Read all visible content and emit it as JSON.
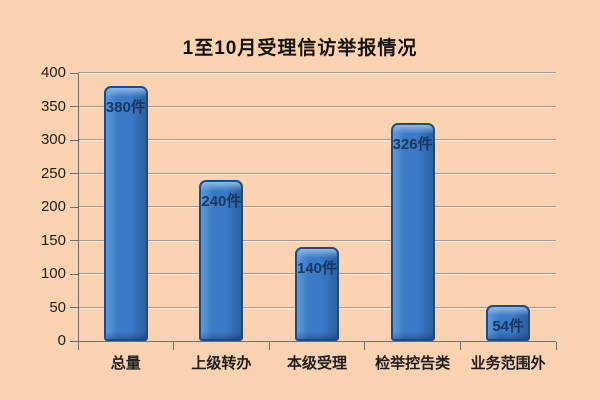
{
  "page": {
    "background": "#fcd3b0"
  },
  "chart_data": {
    "type": "bar",
    "title": "1至10月受理信访举报情况",
    "categories": [
      "总量",
      "上级转办",
      "本级受理",
      "检举控告类",
      "业务范围外"
    ],
    "values": [
      380,
      240,
      140,
      326,
      54
    ],
    "value_labels": [
      "380件",
      "240件",
      "140件",
      "326件",
      "54件"
    ],
    "unit": "件",
    "xlabel": "",
    "ylabel": "",
    "ylim": [
      0,
      400
    ],
    "y_ticks": [
      0,
      50,
      100,
      150,
      200,
      250,
      300,
      350,
      400
    ],
    "grid": true,
    "legend": false,
    "bar_style": "3d-glossy-rounded",
    "colors": {
      "background": "#fcd3b0",
      "title": "#141414",
      "bar_fill": "#3c79c6",
      "bar_fill_light": "#5e99d9",
      "bar_fill_dark": "#2a5fa3",
      "bar_cap_highlight": "#8cb9e8",
      "bar_border": "#1d4c85",
      "value_label": "#17375e",
      "gridline": "#a09a93",
      "axis": "#6e6e6e",
      "tick_label": "#1f1f1f"
    }
  }
}
